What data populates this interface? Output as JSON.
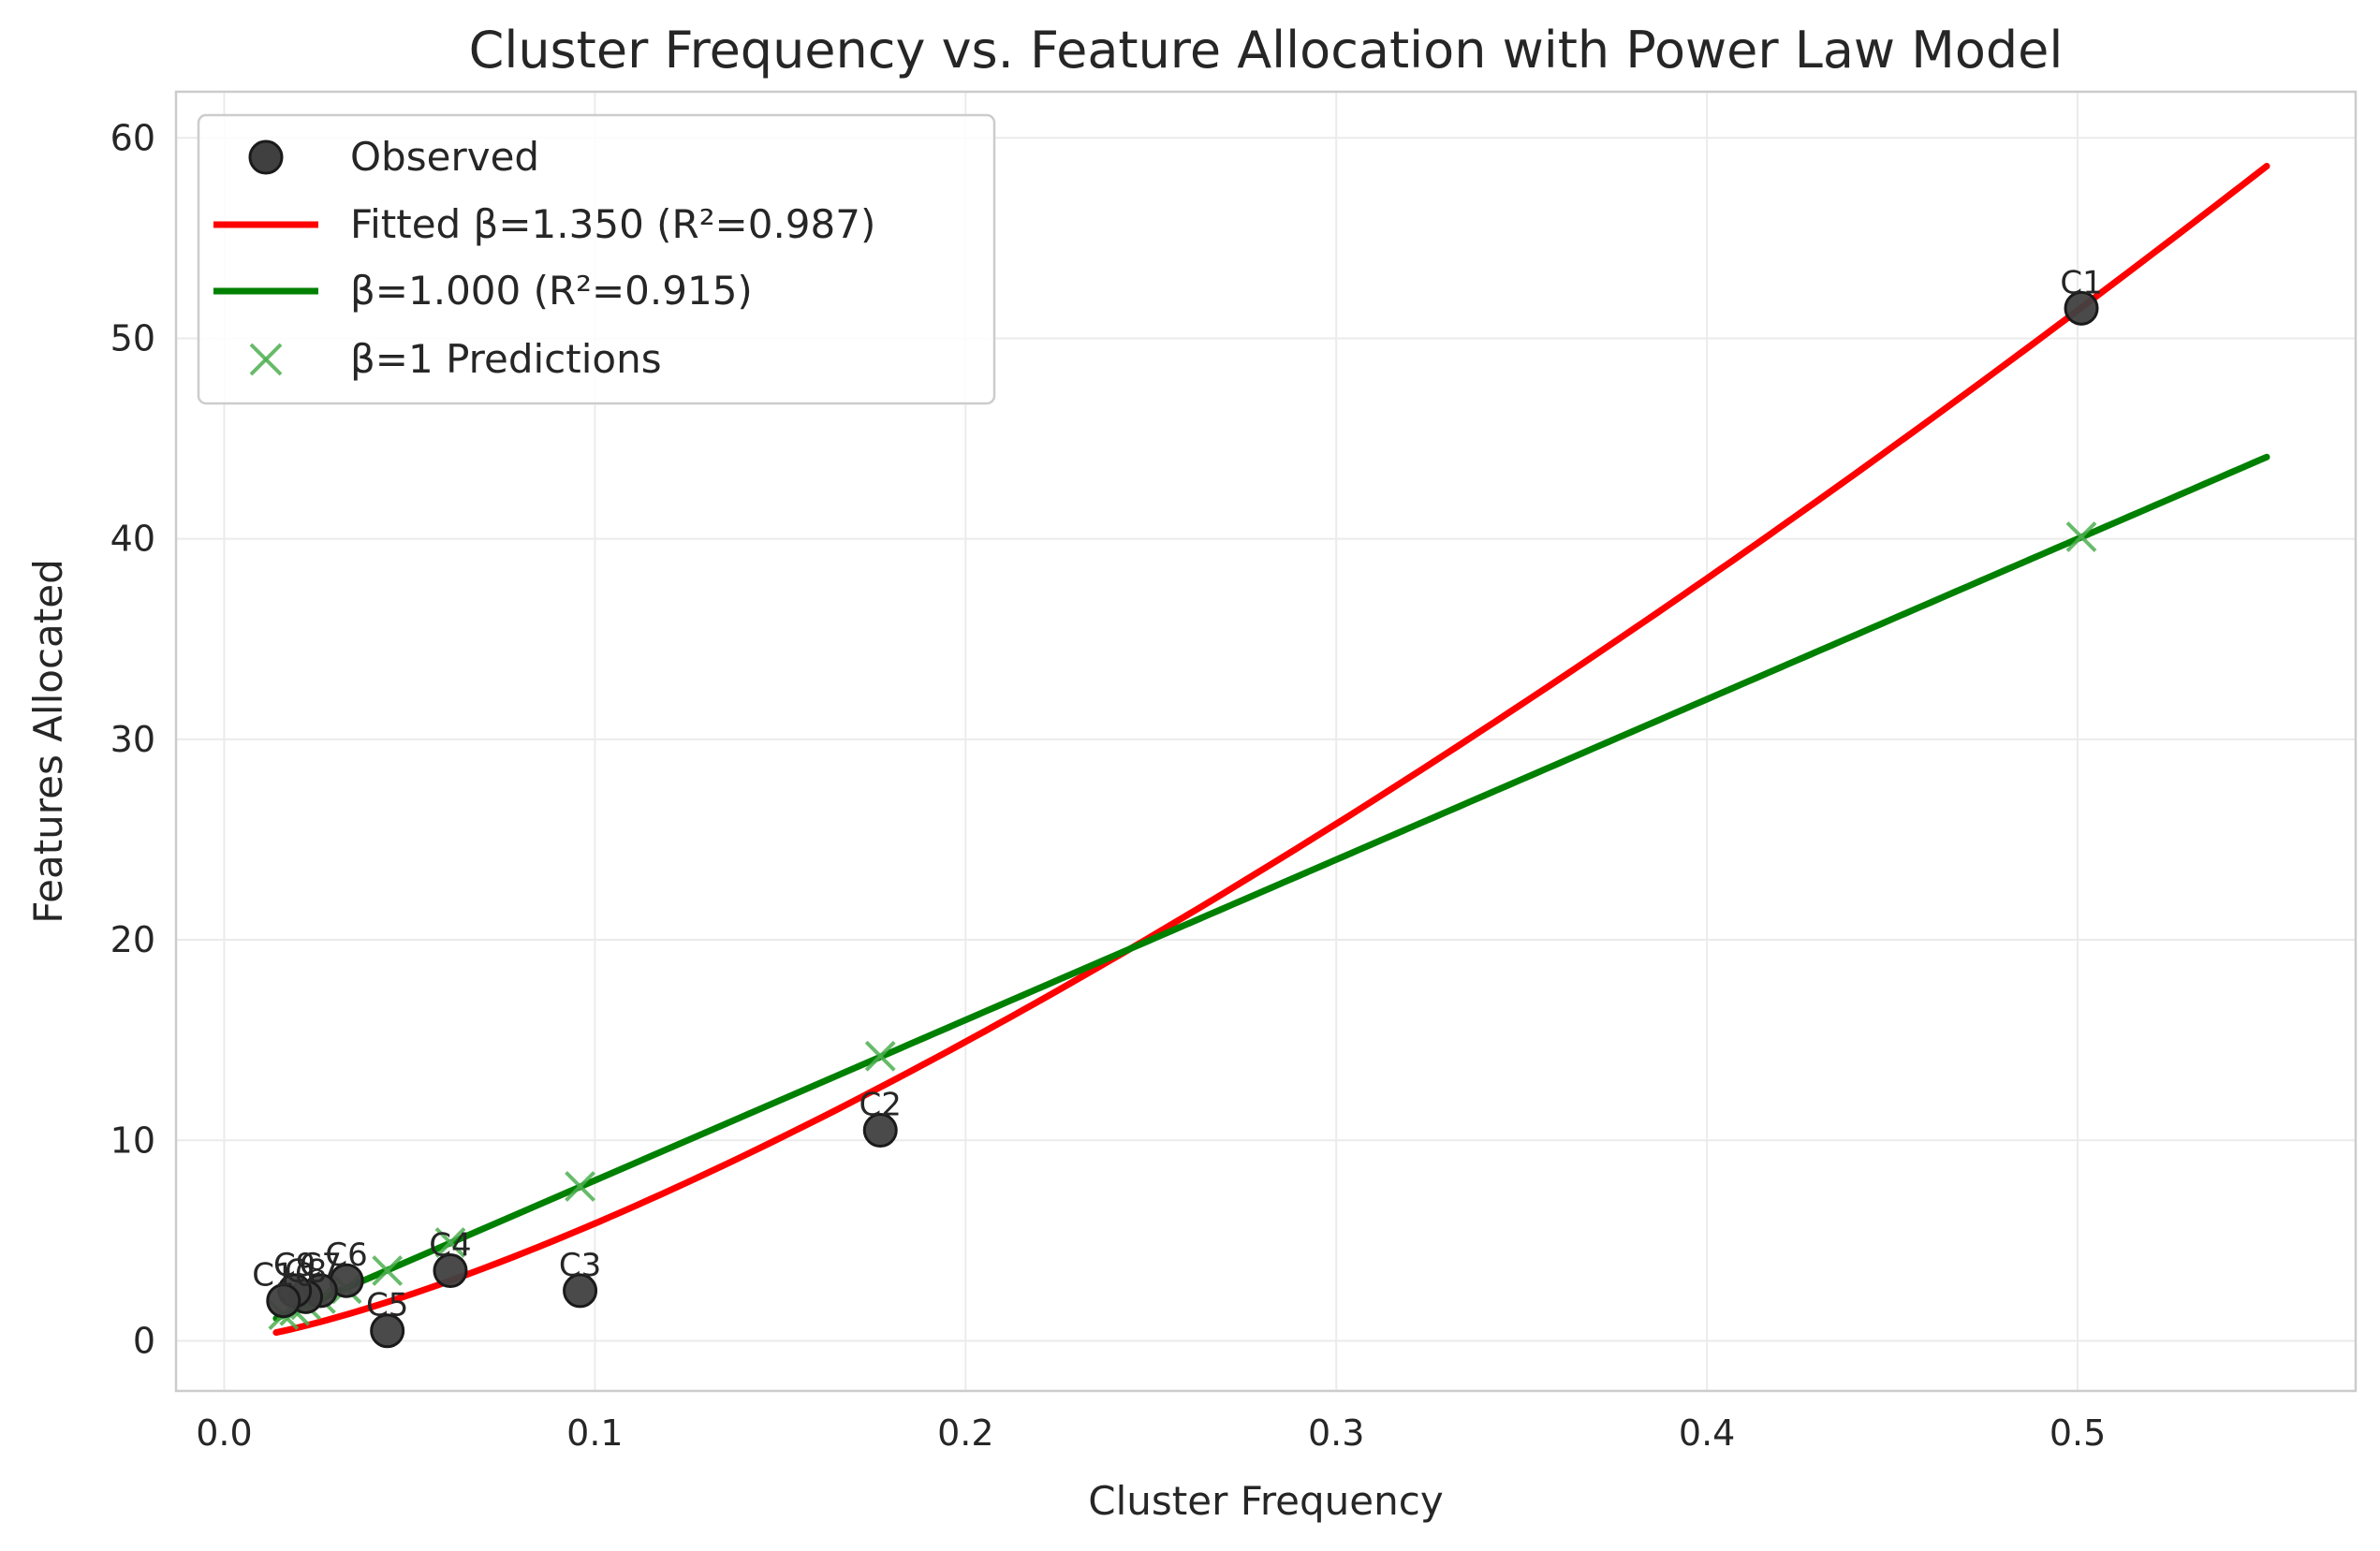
{
  "chart_data": {
    "type": "scatter",
    "title": "Cluster Frequency vs. Feature Allocation with Power Law Model",
    "xlabel": "Cluster Frequency",
    "ylabel": "Features Allocated",
    "xlim": [
      -0.013,
      0.575
    ],
    "ylim": [
      -2.5,
      62.3
    ],
    "xticks": [
      0.0,
      0.1,
      0.2,
      0.3,
      0.4,
      0.5
    ],
    "xtick_labels": [
      "0.0",
      "0.1",
      "0.2",
      "0.3",
      "0.4",
      "0.5"
    ],
    "yticks": [
      0,
      10,
      20,
      30,
      40,
      50,
      60
    ],
    "ytick_labels": [
      "0",
      "10",
      "20",
      "30",
      "40",
      "50",
      "60"
    ],
    "grid": true,
    "legend_position": "top-left",
    "observed": {
      "name": "Observed",
      "color": "#404040",
      "points": [
        {
          "label": "C1",
          "x": 0.501,
          "y": 51.5
        },
        {
          "label": "C2",
          "x": 0.177,
          "y": 10.5
        },
        {
          "label": "C3",
          "x": 0.096,
          "y": 2.5
        },
        {
          "label": "C4",
          "x": 0.061,
          "y": 3.5
        },
        {
          "label": "C5",
          "x": 0.044,
          "y": 0.5
        },
        {
          "label": "C6",
          "x": 0.033,
          "y": 3.0
        },
        {
          "label": "C7",
          "x": 0.026,
          "y": 2.5
        },
        {
          "label": "C8",
          "x": 0.022,
          "y": 2.2
        },
        {
          "label": "C9",
          "x": 0.019,
          "y": 2.5
        },
        {
          "label": "C10",
          "x": 0.016,
          "y": 2.0
        }
      ]
    },
    "series": [
      {
        "name": "Fitted β=1.350 (R²=0.987)",
        "color": "#ff0000",
        "beta": 1.35,
        "scale": 131.0,
        "x_range": [
          0.014,
          0.551
        ]
      },
      {
        "name": "β=1.000 (R²=0.915)",
        "color": "#008000",
        "beta": 1.0,
        "scale": 80.0,
        "x_range": [
          0.014,
          0.551
        ]
      }
    ],
    "predictions": {
      "name": "β=1 Predictions",
      "color": "#4caf50",
      "points": [
        {
          "x": 0.501,
          "y": 40.1
        },
        {
          "x": 0.177,
          "y": 14.2
        },
        {
          "x": 0.096,
          "y": 7.7
        },
        {
          "x": 0.061,
          "y": 4.9
        },
        {
          "x": 0.044,
          "y": 3.5
        },
        {
          "x": 0.033,
          "y": 2.6
        },
        {
          "x": 0.026,
          "y": 2.1
        },
        {
          "x": 0.022,
          "y": 1.8
        },
        {
          "x": 0.019,
          "y": 1.5
        },
        {
          "x": 0.016,
          "y": 1.3
        }
      ]
    }
  }
}
